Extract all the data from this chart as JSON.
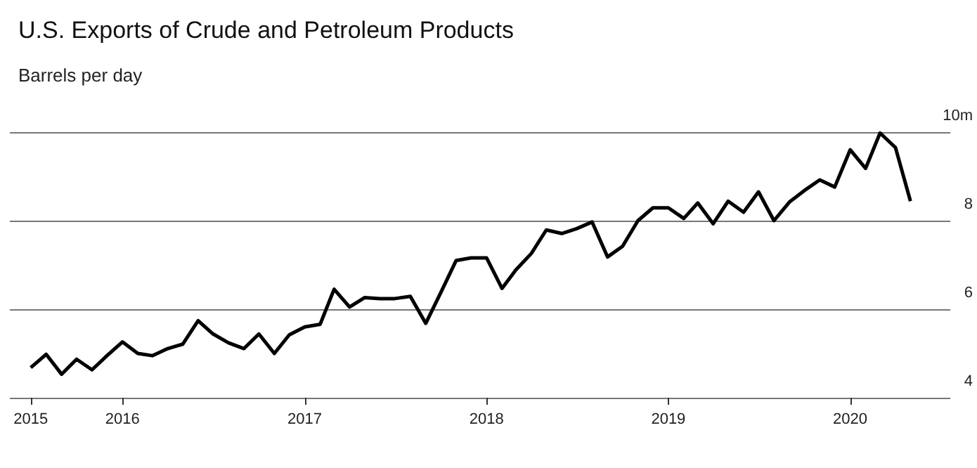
{
  "chart_data": {
    "type": "line",
    "title": "U.S. Exports of Crude and Petroleum Products",
    "subtitle": "Barrels per day",
    "x": [
      "2015-07",
      "2015-08",
      "2015-09",
      "2015-10",
      "2015-11",
      "2015-12",
      "2016-01",
      "2016-02",
      "2016-03",
      "2016-04",
      "2016-05",
      "2016-06",
      "2016-07",
      "2016-08",
      "2016-09",
      "2016-10",
      "2016-11",
      "2016-12",
      "2017-01",
      "2017-02",
      "2017-03",
      "2017-04",
      "2017-05",
      "2017-06",
      "2017-07",
      "2017-08",
      "2017-09",
      "2017-10",
      "2017-11",
      "2017-12",
      "2018-01",
      "2018-02",
      "2018-03",
      "2018-04",
      "2018-05",
      "2018-06",
      "2018-07",
      "2018-08",
      "2018-09",
      "2018-10",
      "2018-11",
      "2018-12",
      "2019-01",
      "2019-02",
      "2019-03",
      "2019-04",
      "2019-05",
      "2019-06",
      "2019-07",
      "2019-08",
      "2019-09",
      "2019-10",
      "2019-11",
      "2019-12",
      "2020-01",
      "2020-02",
      "2020-03",
      "2020-04",
      "2020-05"
    ],
    "values": [
      4.68,
      4.98,
      4.53,
      4.87,
      4.63,
      4.95,
      5.26,
      5.0,
      4.95,
      5.11,
      5.21,
      5.74,
      5.44,
      5.24,
      5.11,
      5.44,
      5.0,
      5.42,
      5.6,
      5.66,
      6.45,
      6.05,
      6.26,
      6.24,
      6.24,
      6.29,
      5.68,
      6.37,
      7.1,
      7.16,
      7.16,
      6.47,
      6.89,
      7.26,
      7.79,
      7.71,
      7.82,
      7.97,
      7.18,
      7.42,
      8.0,
      8.29,
      8.29,
      8.05,
      8.4,
      7.93,
      8.44,
      8.19,
      8.65,
      8.0,
      8.42,
      8.68,
      8.92,
      8.76,
      9.6,
      9.18,
      9.98,
      9.65,
      8.44
    ],
    "color": "#000000",
    "xlim": [
      "2015-05-20",
      "2020-07-20"
    ],
    "xticks": [
      {
        "value": "2015-07",
        "label": "2015"
      },
      {
        "value": "2016-01",
        "label": "2016"
      },
      {
        "value": "2017-01",
        "label": "2017"
      },
      {
        "value": "2018-01",
        "label": "2018"
      },
      {
        "value": "2019-01",
        "label": "2019"
      },
      {
        "value": "2020-01",
        "label": "2020"
      }
    ],
    "ylim": [
      4,
      10
    ],
    "yticks": [
      4,
      6,
      8,
      {
        "value": 10,
        "label": "10m"
      }
    ],
    "grid": "y"
  }
}
